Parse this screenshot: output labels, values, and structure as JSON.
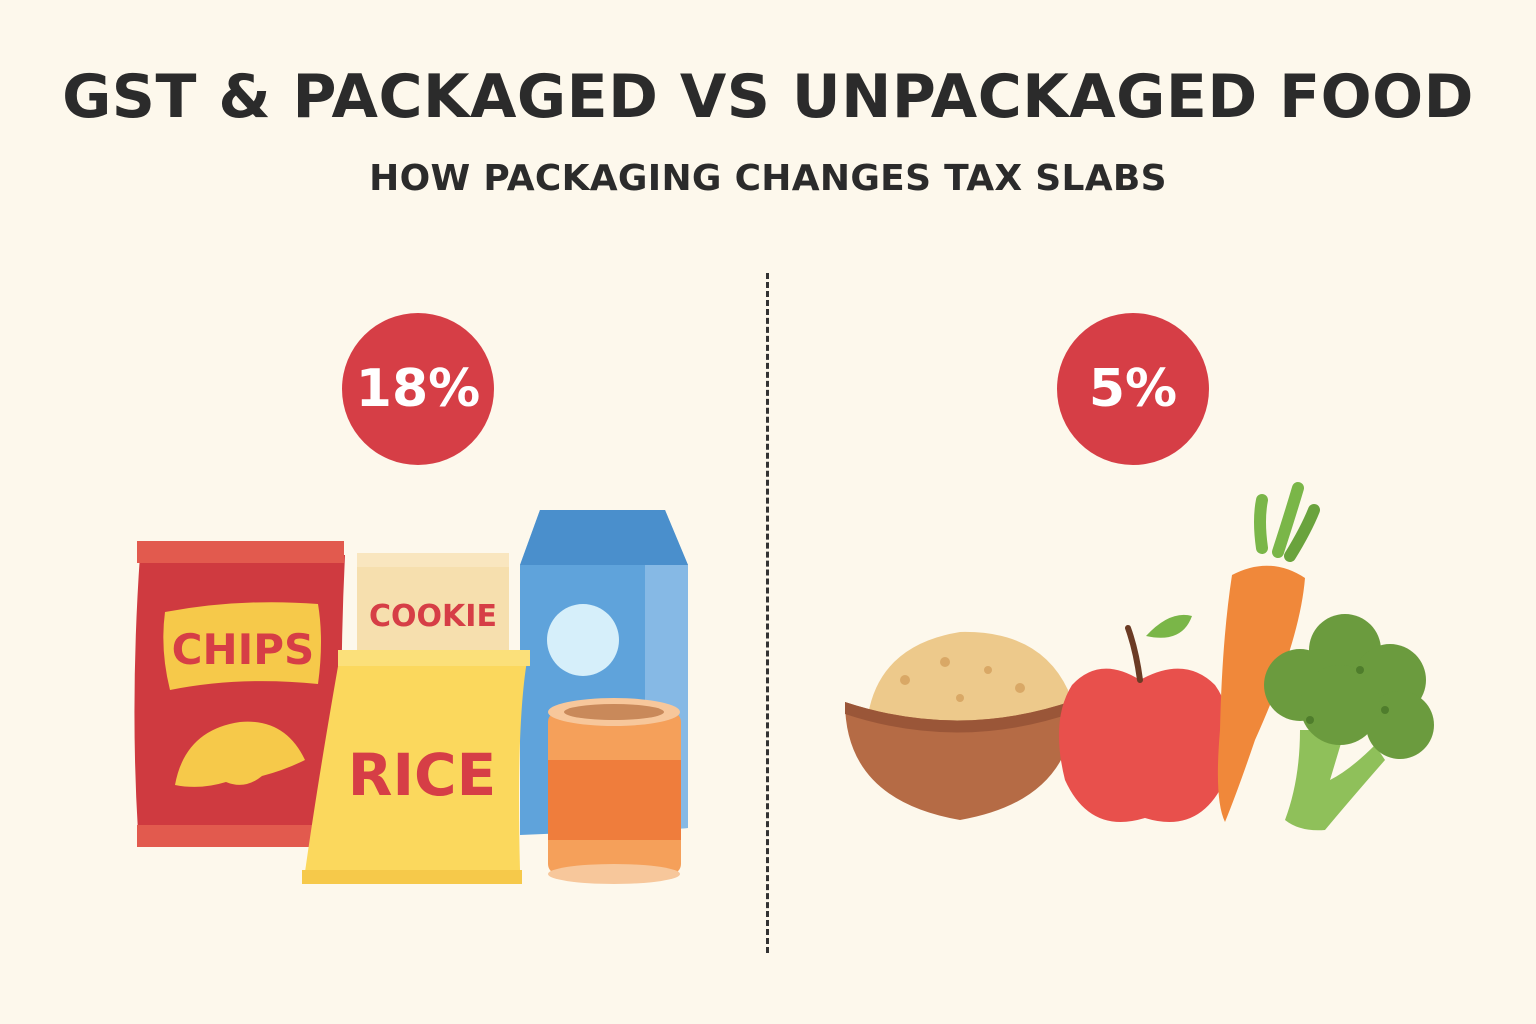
{
  "header": {
    "title": "GST & PACKAGED VS UNPACKAGED FOOD",
    "subtitle": "HOW PACKAGING CHANGES TAX SLABS"
  },
  "packaged": {
    "rate": "18%",
    "items": {
      "chips": "CHIPS",
      "cookie": "COOKIE",
      "rice": "RICE"
    }
  },
  "unpackaged": {
    "rate": "5%"
  },
  "colors": {
    "badge": "#d63e46",
    "background": "#fdf8ec",
    "text": "#2b2b2b"
  }
}
